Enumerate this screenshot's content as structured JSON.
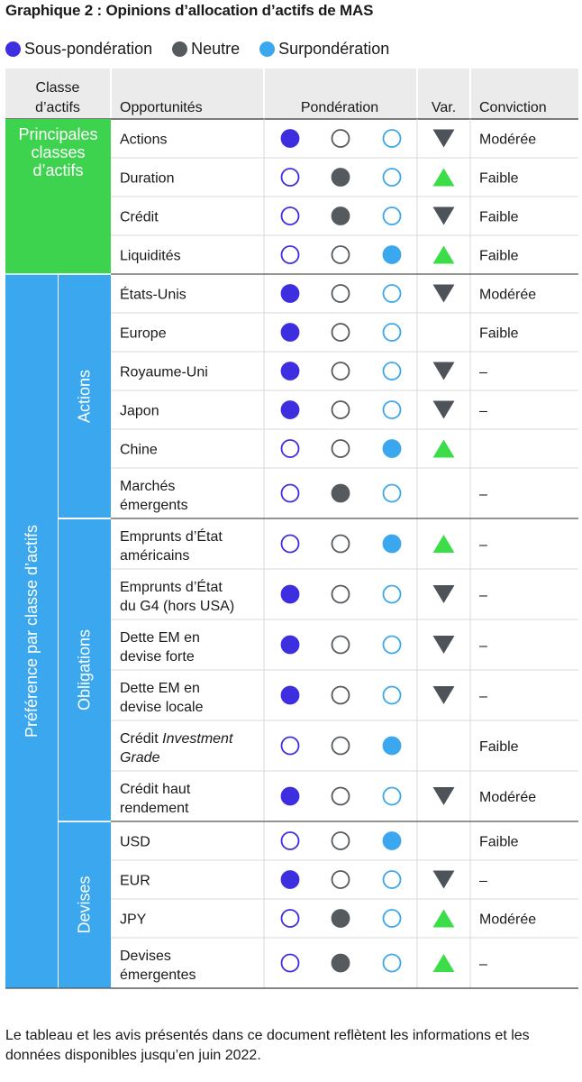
{
  "title": "Graphique 2 : Opinions d’allocation d’actifs de MAS",
  "legend": [
    {
      "label": "Sous-pondération",
      "color": "#3d2ee0"
    },
    {
      "label": "Neutre",
      "color": "#555a5f"
    },
    {
      "label": "Surpondération",
      "color": "#3aa7ee"
    }
  ],
  "colors": {
    "under": "#3d2ee0",
    "neutral": "#555a5f",
    "over": "#3aa7ee",
    "up": "#3ddc49",
    "down": "#4d5358",
    "main_band": "#3ed34f",
    "pref_band": "#3aa7ee",
    "header_bg": "#ebebeb"
  },
  "headers": {
    "classe": [
      "Classe",
      "d’actifs"
    ],
    "opportunites": "Opportunités",
    "ponderation": "Pondération",
    "var": "Var.",
    "conviction": "Conviction"
  },
  "group_labels": {
    "main": [
      "Principales",
      "classes",
      "d’actifs"
    ],
    "pref": "Préférence par classe d’actifs"
  },
  "chart_data": {
    "type": "table",
    "columns": [
      "Classe d’actifs",
      "Opportunités",
      "Pondération",
      "Var.",
      "Conviction"
    ],
    "rows": [
      {
        "group": "Principales classes d’actifs",
        "sub": "",
        "opp": [
          "Actions"
        ],
        "weight": "under",
        "var": "down",
        "conviction": "Modérée"
      },
      {
        "group": "Principales classes d’actifs",
        "sub": "",
        "opp": [
          "Duration"
        ],
        "weight": "neutral",
        "var": "up",
        "conviction": "Faible"
      },
      {
        "group": "Principales classes d’actifs",
        "sub": "",
        "opp": [
          "Crédit"
        ],
        "weight": "neutral",
        "var": "down",
        "conviction": "Faible"
      },
      {
        "group": "Principales classes d’actifs",
        "sub": "",
        "opp": [
          "Liquidités"
        ],
        "weight": "over",
        "var": "up",
        "conviction": "Faible"
      },
      {
        "group": "Préférence par classe d’actifs",
        "sub": "Actions",
        "opp": [
          "États-Unis"
        ],
        "weight": "under",
        "var": "down",
        "conviction": "Modérée"
      },
      {
        "group": "Préférence par classe d’actifs",
        "sub": "Actions",
        "opp": [
          "Europe"
        ],
        "weight": "under",
        "var": "",
        "conviction": "Faible"
      },
      {
        "group": "Préférence par classe d’actifs",
        "sub": "Actions",
        "opp": [
          "Royaume-Uni"
        ],
        "weight": "under",
        "var": "down",
        "conviction": "–"
      },
      {
        "group": "Préférence par classe d’actifs",
        "sub": "Actions",
        "opp": [
          "Japon"
        ],
        "weight": "under",
        "var": "down",
        "conviction": "–"
      },
      {
        "group": "Préférence par classe d’actifs",
        "sub": "Actions",
        "opp": [
          "Chine"
        ],
        "weight": "over",
        "var": "up",
        "conviction": ""
      },
      {
        "group": "Préférence par classe d’actifs",
        "sub": "Actions",
        "opp": [
          "Marchés",
          "émergents"
        ],
        "weight": "neutral",
        "var": "",
        "conviction": "–"
      },
      {
        "group": "Préférence par classe d’actifs",
        "sub": "Obligations",
        "opp": [
          "Emprunts d’État",
          "américains"
        ],
        "weight": "over",
        "var": "up",
        "conviction": "–"
      },
      {
        "group": "Préférence par classe d’actifs",
        "sub": "Obligations",
        "opp": [
          "Emprunts d’État",
          "du G4 (hors USA)"
        ],
        "weight": "under",
        "var": "down",
        "conviction": "–"
      },
      {
        "group": "Préférence par classe d’actifs",
        "sub": "Obligations",
        "opp": [
          "Dette EM en",
          "devise forte"
        ],
        "weight": "under",
        "var": "down",
        "conviction": "–"
      },
      {
        "group": "Préférence par classe d’actifs",
        "sub": "Obligations",
        "opp": [
          "Dette EM en",
          "devise locale"
        ],
        "weight": "under",
        "var": "down",
        "conviction": "–"
      },
      {
        "group": "Préférence par classe d’actifs",
        "sub": "Obligations",
        "opp": [
          "Crédit Investment",
          "Grade"
        ],
        "weight": "over",
        "var": "",
        "conviction": "Faible"
      },
      {
        "group": "Préférence par classe d’actifs",
        "sub": "Obligations",
        "opp": [
          "Crédit haut",
          "rendement"
        ],
        "weight": "under",
        "var": "down",
        "conviction": "Modérée"
      },
      {
        "group": "Préférence par classe d’actifs",
        "sub": "Devises",
        "opp": [
          "USD"
        ],
        "weight": "over",
        "var": "",
        "conviction": "Faible"
      },
      {
        "group": "Préférence par classe d’actifs",
        "sub": "Devises",
        "opp": [
          "EUR"
        ],
        "weight": "under",
        "var": "down",
        "conviction": "–"
      },
      {
        "group": "Préférence par classe d’actifs",
        "sub": "Devises",
        "opp": [
          "JPY"
        ],
        "weight": "neutral",
        "var": "up",
        "conviction": "Modérée"
      },
      {
        "group": "Préférence par classe d’actifs",
        "sub": "Devises",
        "opp": [
          "Devises",
          "émergentes"
        ],
        "weight": "neutral",
        "var": "up",
        "conviction": "–"
      }
    ]
  },
  "note": "Le tableau et les avis présentés dans ce document reflètent les informations et les données disponibles jusqu’en juin 2022."
}
